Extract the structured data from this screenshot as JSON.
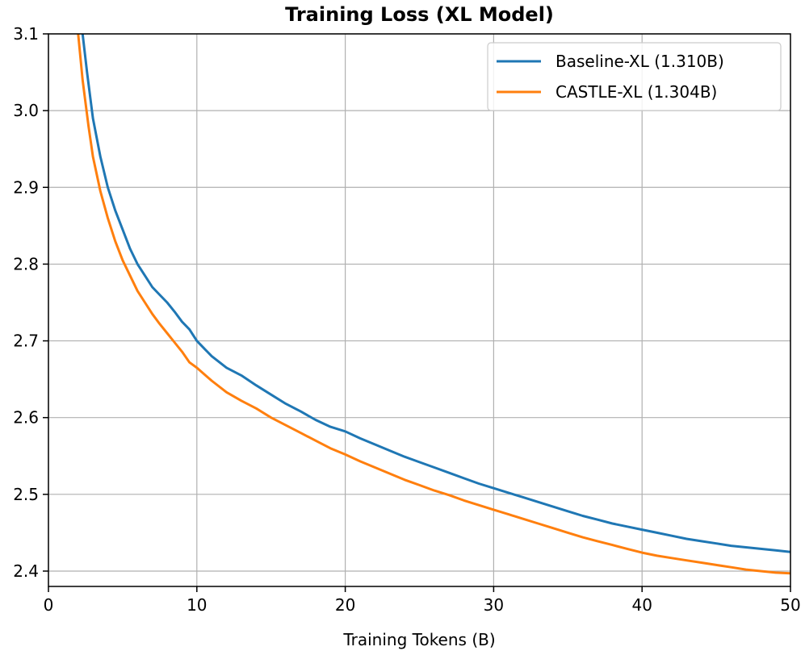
{
  "chart_data": {
    "type": "line",
    "title": "Training Loss (XL Model)",
    "xlabel": "Training Tokens (B)",
    "ylabel": "",
    "xlim": [
      0,
      50
    ],
    "ylim": [
      2.38,
      3.1
    ],
    "x_ticks": [
      0,
      10,
      20,
      30,
      40,
      50
    ],
    "y_ticks": [
      2.4,
      2.5,
      2.6,
      2.7,
      2.8,
      2.9,
      3.0,
      3.1
    ],
    "x_tick_labels": [
      "0",
      "10",
      "20",
      "30",
      "40",
      "50"
    ],
    "y_tick_labels": [
      "2.4",
      "2.5",
      "2.6",
      "2.7",
      "2.8",
      "2.9",
      "3.0",
      "3.1"
    ],
    "grid": true,
    "legend_position": "top-right",
    "series": [
      {
        "name": "Baseline-XL (1.310B)",
        "color": "#1f77b4",
        "points": [
          [
            2.3,
            3.1
          ],
          [
            2.6,
            3.05
          ],
          [
            3.0,
            2.99
          ],
          [
            3.5,
            2.94
          ],
          [
            4.0,
            2.9
          ],
          [
            4.5,
            2.87
          ],
          [
            5.0,
            2.845
          ],
          [
            5.5,
            2.82
          ],
          [
            6.0,
            2.8
          ],
          [
            6.5,
            2.785
          ],
          [
            7.0,
            2.77
          ],
          [
            7.5,
            2.76
          ],
          [
            8.0,
            2.75
          ],
          [
            8.5,
            2.738
          ],
          [
            9.0,
            2.725
          ],
          [
            9.5,
            2.715
          ],
          [
            10.0,
            2.7
          ],
          [
            11.0,
            2.68
          ],
          [
            12.0,
            2.665
          ],
          [
            13.0,
            2.655
          ],
          [
            14.0,
            2.642
          ],
          [
            15.0,
            2.63
          ],
          [
            16.0,
            2.618
          ],
          [
            17.0,
            2.608
          ],
          [
            18.0,
            2.597
          ],
          [
            19.0,
            2.588
          ],
          [
            20.0,
            2.582
          ],
          [
            21.0,
            2.573
          ],
          [
            22.0,
            2.565
          ],
          [
            23.0,
            2.557
          ],
          [
            24.0,
            2.549
          ],
          [
            25.0,
            2.542
          ],
          [
            26.0,
            2.535
          ],
          [
            27.0,
            2.528
          ],
          [
            28.0,
            2.521
          ],
          [
            29.0,
            2.514
          ],
          [
            30.0,
            2.508
          ],
          [
            31.0,
            2.502
          ],
          [
            32.0,
            2.496
          ],
          [
            33.0,
            2.49
          ],
          [
            34.0,
            2.484
          ],
          [
            35.0,
            2.478
          ],
          [
            36.0,
            2.472
          ],
          [
            37.0,
            2.467
          ],
          [
            38.0,
            2.462
          ],
          [
            39.0,
            2.458
          ],
          [
            40.0,
            2.454
          ],
          [
            41.0,
            2.45
          ],
          [
            42.0,
            2.446
          ],
          [
            43.0,
            2.442
          ],
          [
            44.0,
            2.439
          ],
          [
            45.0,
            2.436
          ],
          [
            46.0,
            2.433
          ],
          [
            47.0,
            2.431
          ],
          [
            48.0,
            2.429
          ],
          [
            49.0,
            2.427
          ],
          [
            50.0,
            2.425
          ]
        ]
      },
      {
        "name": "CASTLE-XL (1.304B)",
        "color": "#ff7f0e",
        "points": [
          [
            2.0,
            3.1
          ],
          [
            2.3,
            3.04
          ],
          [
            2.7,
            2.98
          ],
          [
            3.0,
            2.94
          ],
          [
            3.5,
            2.895
          ],
          [
            4.0,
            2.86
          ],
          [
            4.5,
            2.83
          ],
          [
            5.0,
            2.805
          ],
          [
            5.5,
            2.785
          ],
          [
            6.0,
            2.765
          ],
          [
            6.5,
            2.75
          ],
          [
            7.0,
            2.735
          ],
          [
            7.5,
            2.722
          ],
          [
            8.0,
            2.71
          ],
          [
            8.5,
            2.698
          ],
          [
            9.0,
            2.686
          ],
          [
            9.5,
            2.672
          ],
          [
            10.0,
            2.665
          ],
          [
            11.0,
            2.648
          ],
          [
            12.0,
            2.633
          ],
          [
            13.0,
            2.622
          ],
          [
            14.0,
            2.612
          ],
          [
            15.0,
            2.6
          ],
          [
            16.0,
            2.59
          ],
          [
            17.0,
            2.58
          ],
          [
            18.0,
            2.57
          ],
          [
            19.0,
            2.56
          ],
          [
            20.0,
            2.552
          ],
          [
            21.0,
            2.543
          ],
          [
            22.0,
            2.535
          ],
          [
            23.0,
            2.527
          ],
          [
            24.0,
            2.519
          ],
          [
            25.0,
            2.512
          ],
          [
            26.0,
            2.505
          ],
          [
            27.0,
            2.499
          ],
          [
            28.0,
            2.492
          ],
          [
            29.0,
            2.486
          ],
          [
            30.0,
            2.48
          ],
          [
            31.0,
            2.474
          ],
          [
            32.0,
            2.468
          ],
          [
            33.0,
            2.462
          ],
          [
            34.0,
            2.456
          ],
          [
            35.0,
            2.45
          ],
          [
            36.0,
            2.444
          ],
          [
            37.0,
            2.439
          ],
          [
            38.0,
            2.434
          ],
          [
            39.0,
            2.429
          ],
          [
            40.0,
            2.424
          ],
          [
            41.0,
            2.42
          ],
          [
            42.0,
            2.417
          ],
          [
            43.0,
            2.414
          ],
          [
            44.0,
            2.411
          ],
          [
            45.0,
            2.408
          ],
          [
            46.0,
            2.405
          ],
          [
            47.0,
            2.402
          ],
          [
            48.0,
            2.4
          ],
          [
            49.0,
            2.398
          ],
          [
            50.0,
            2.397
          ]
        ]
      }
    ]
  }
}
